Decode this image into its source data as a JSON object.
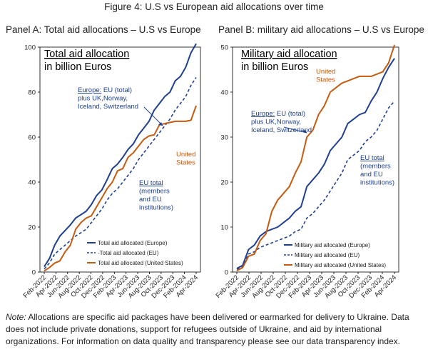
{
  "figure_title": "Figure 4: U.S vs European aid allocations over time",
  "note_label": "Note:",
  "note_text": "Allocations are specific aid packages have been delivered or earmarked for delivery to Ukraine. Data does not include private donations, support for refugees outside of Ukraine, and aid by international organizations. For information on data quality and transparency please see our data transparency index.",
  "colors": {
    "europe": "#1f3f8f",
    "eu": "#1f3f8f",
    "us": "#c55a11"
  },
  "chart_data": [
    {
      "type": "line",
      "panel_title": "Panel A: Total aid allocations – U.S vs Europe",
      "title_line1": "Total aid allocation",
      "title_line2": "in billion Euros",
      "ylim": [
        0,
        100
      ],
      "yticks": [
        0,
        20,
        40,
        60,
        80,
        100
      ],
      "xticks": [
        "Feb-2022",
        "Apr-2022",
        "Jun-2022",
        "Aug-2022",
        "Oct-2022",
        "Dec-2022",
        "Feb-2023",
        "Apr-2023",
        "Jun-2023",
        "Aug-2023",
        "Oct-2023",
        "Dec-2023",
        "Feb-2024",
        "Apr-2024"
      ],
      "series": [
        {
          "name": "Total aid allocated (Europe)",
          "style": "solid",
          "color": "#1f3f8f",
          "values": [
            2.4,
            6,
            12,
            16,
            18.5,
            21,
            24,
            25.5,
            27,
            30,
            34,
            36.5,
            41,
            46,
            48,
            51,
            54.5,
            57,
            61,
            64,
            67,
            72,
            75,
            78,
            80,
            85,
            87,
            91,
            97.5,
            101.5
          ]
        },
        {
          "name": "-Total aid allocated (EU)",
          "style": "dashed",
          "color": "#1f3f8f",
          "values": [
            1.4,
            4,
            8,
            10,
            12,
            14,
            16,
            17.5,
            19,
            22,
            25,
            28,
            32,
            35,
            37,
            40,
            43,
            46,
            50,
            53,
            56,
            59,
            62,
            65,
            68,
            72,
            75,
            78,
            83,
            86.5
          ]
        },
        {
          "name": "Total aid allocated (United States)",
          "style": "solid",
          "color": "#c55a11",
          "values": [
            0.5,
            2,
            4,
            5,
            9,
            12,
            19,
            22,
            24,
            25,
            29,
            33,
            37,
            40,
            45,
            46,
            51,
            53,
            56,
            59,
            60.5,
            61,
            65.5,
            66,
            66.5,
            67,
            67,
            67,
            67.5,
            74
          ]
        }
      ],
      "legend": [
        "Total aid allocated (Europe)",
        "-Total aid allocated (EU)",
        "Total aid allocated (United States)"
      ],
      "annotations": [
        {
          "lines": [
            "Europe: EU (total)",
            "plus UK,Norway,",
            "Iceland, Switzerland"
          ],
          "color": "#1f3f8f"
        },
        {
          "lines": [
            "United",
            "States"
          ],
          "color": "#c55a11"
        },
        {
          "lines": [
            "EU total",
            "(members",
            "and EU",
            "institutions)"
          ],
          "color": "#1f3f8f"
        }
      ]
    },
    {
      "type": "line",
      "panel_title": "Panel B: military aid allocations – U.S vs Europe",
      "title_line1": "Military aid allocation",
      "title_line2": "in billion Euros",
      "ylim": [
        0,
        50
      ],
      "yticks": [
        0,
        10,
        20,
        30,
        40,
        50
      ],
      "xticks": [
        "Feb-2022",
        "Apr-2022",
        "Jun-2022",
        "Aug-2022",
        "Oct-2022",
        "Dec-2022",
        "Feb-2023",
        "Apr-2023",
        "Jun-2023",
        "Aug-2023",
        "Oct-2023",
        "Dec-2023",
        "Feb-2024",
        "Apr-2024"
      ],
      "series": [
        {
          "name": "Military aid allocated (Europe)",
          "style": "solid",
          "color": "#1f3f8f",
          "values": [
            0.8,
            1.5,
            5,
            6,
            8,
            9,
            9.5,
            10,
            11,
            12,
            13.5,
            14.5,
            19,
            20.5,
            22,
            24,
            27,
            28.5,
            30,
            33,
            34,
            35,
            35.5,
            38,
            40,
            43,
            45.5,
            47.5
          ]
        },
        {
          "name": "Military aid allocated (EU)",
          "style": "dashed",
          "color": "#1f3f8f",
          "values": [
            0.6,
            1.2,
            4,
            4.5,
            5.5,
            6,
            6.5,
            7,
            7.5,
            8,
            9,
            9.5,
            12,
            13,
            14.5,
            16,
            18,
            20,
            22,
            25,
            26,
            27,
            29,
            30,
            31.5,
            34,
            36.5,
            38
          ]
        },
        {
          "name": "Military aid allocated (United States)",
          "style": "solid",
          "color": "#c55a11",
          "values": [
            0.3,
            1,
            3.5,
            4,
            7,
            8.5,
            13.5,
            16,
            17.5,
            19,
            22,
            24.5,
            30,
            31.5,
            35,
            37,
            40,
            41,
            42,
            42.5,
            43,
            43.5,
            43.5,
            43.5,
            44,
            44.5,
            46.5,
            50.5
          ]
        }
      ],
      "legend": [
        "Military aid allocated (Europe)",
        "Military aid allocated (EU)",
        "Military aid allocated (United States)"
      ],
      "annotations": [
        {
          "lines": [
            "United",
            "States"
          ],
          "color": "#c55a11"
        },
        {
          "lines": [
            "Europe: EU (total)",
            "plus UK,Norway,",
            "Iceland, Switzerland"
          ],
          "color": "#1f3f8f"
        },
        {
          "lines": [
            "EU total",
            "(members",
            "and EU",
            "institutions)"
          ],
          "color": "#1f3f8f"
        }
      ]
    }
  ]
}
